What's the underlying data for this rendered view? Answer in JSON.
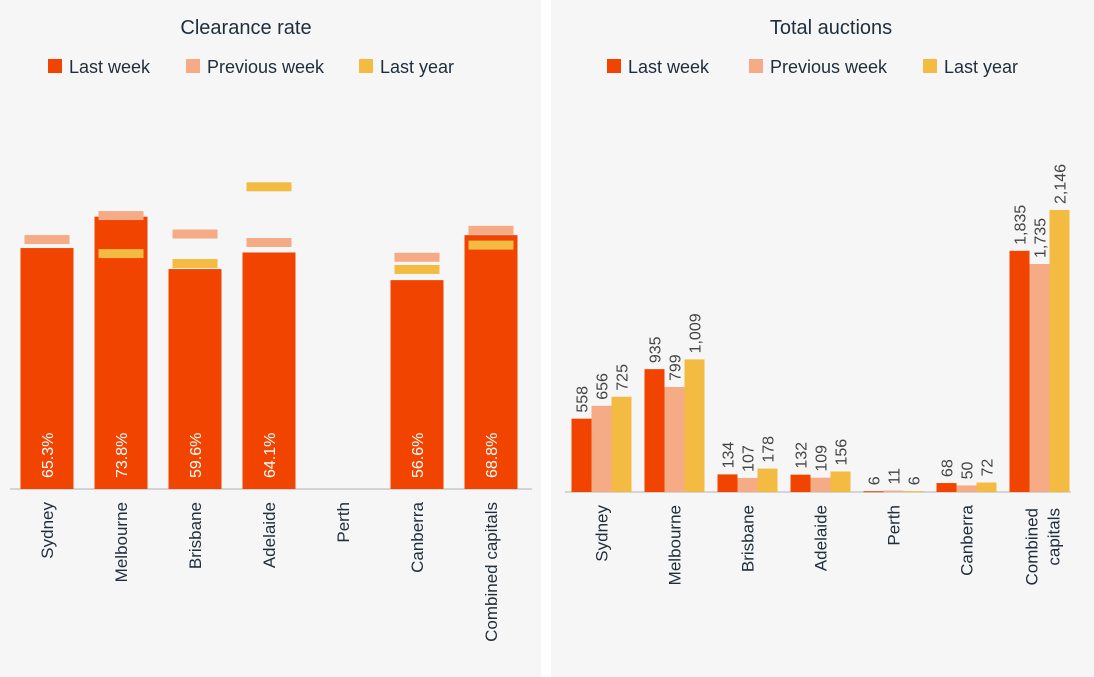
{
  "colors": {
    "last_week": "#f04400",
    "previous_week": "#f5ab85",
    "last_year": "#f4bb42"
  },
  "chart_data": [
    {
      "type": "bar",
      "title": "Clearance rate",
      "legend": [
        "Last week",
        "Previous week",
        "Last year"
      ],
      "categories": [
        "Sydney",
        "Melbourne",
        "Brisbane",
        "Adelaide",
        "Perth",
        "Canberra",
        "Combined capitals"
      ],
      "series": [
        {
          "name": "Last week",
          "values": [
            65.3,
            73.8,
            59.6,
            64.1,
            null,
            56.6,
            68.8
          ],
          "labels": [
            "65.3%",
            "73.8%",
            "59.6%",
            "64.1%",
            "",
            "56.6%",
            "68.8%"
          ]
        },
        {
          "name": "Previous week",
          "values": [
            67.6,
            74.1,
            69.1,
            66.8,
            null,
            62.8,
            70.1
          ]
        },
        {
          "name": "Last year",
          "values": [
            null,
            63.8,
            61.1,
            81.9,
            null,
            59.5,
            66.1
          ]
        }
      ],
      "ylim": [
        0,
        100
      ]
    },
    {
      "type": "bar",
      "title": "Total auctions",
      "legend": [
        "Last week",
        "Previous week",
        "Last year"
      ],
      "categories": [
        "Sydney",
        "Melbourne",
        "Brisbane",
        "Adelaide",
        "Perth",
        "Canberra",
        "Combined capitals"
      ],
      "series": [
        {
          "name": "Last week",
          "values": [
            558,
            935,
            134,
            132,
            6,
            68,
            1835
          ],
          "labels": [
            "558",
            "935",
            "134",
            "132",
            "6",
            "68",
            "1,835"
          ]
        },
        {
          "name": "Previous week",
          "values": [
            656,
            799,
            107,
            109,
            11,
            50,
            1735
          ],
          "labels": [
            "656",
            "799",
            "107",
            "109",
            "11",
            "50",
            "1,735"
          ]
        },
        {
          "name": "Last year",
          "values": [
            725,
            1009,
            178,
            156,
            6,
            72,
            2146
          ],
          "labels": [
            "725",
            "1,009",
            "178",
            "156",
            "6",
            "72",
            "2,146"
          ]
        }
      ],
      "ylim": [
        0,
        2146
      ]
    }
  ]
}
